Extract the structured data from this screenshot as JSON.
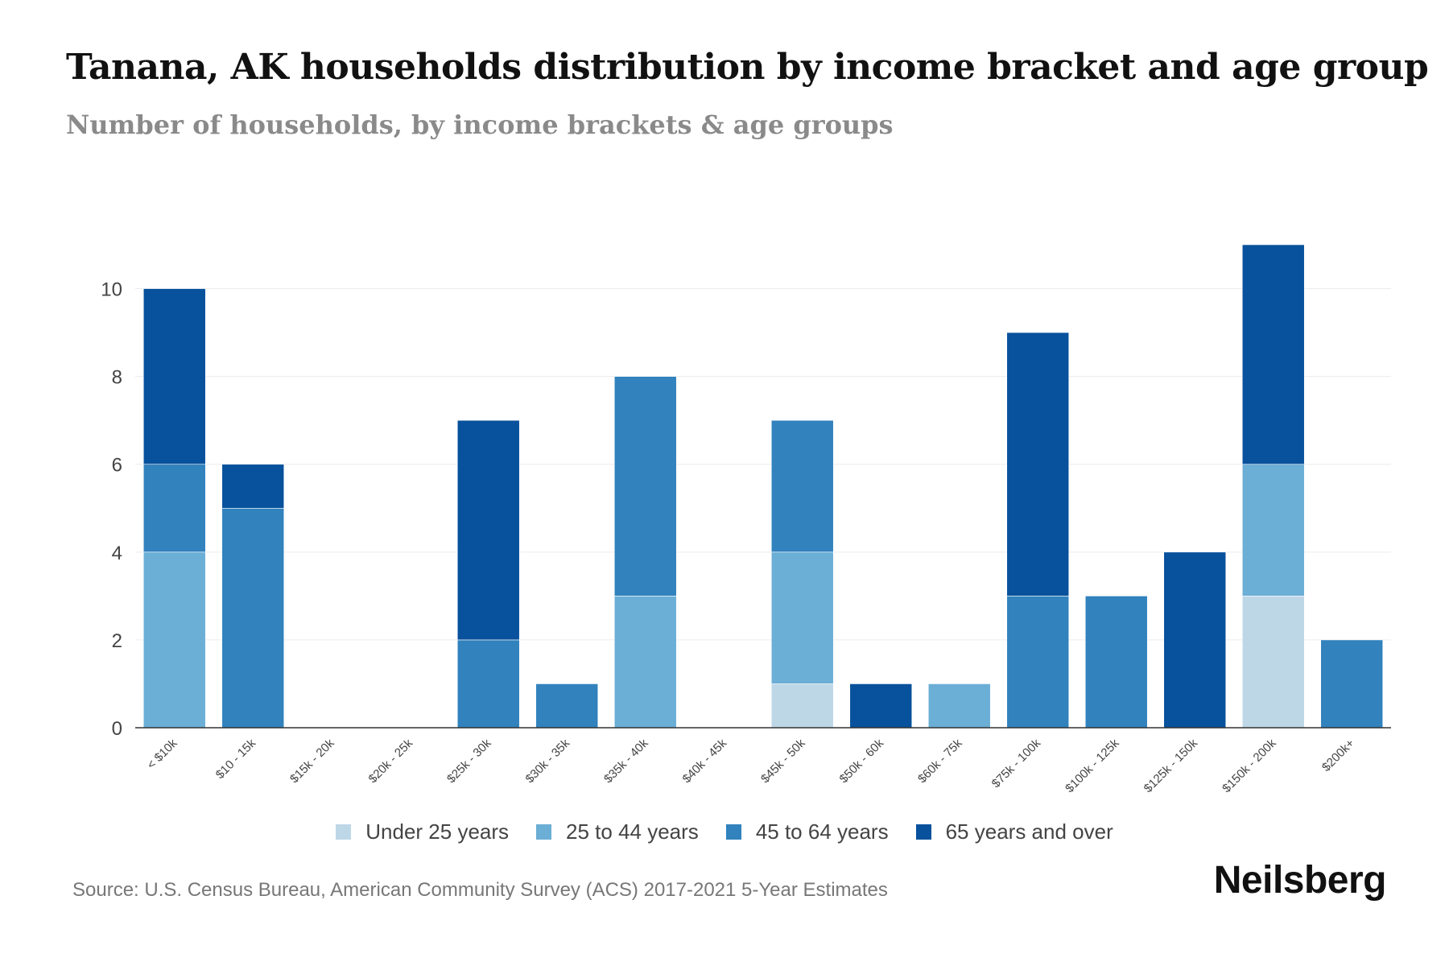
{
  "chart_data": {
    "type": "bar",
    "stacked": true,
    "title": "Tanana, AK households distribution by income bracket and age group",
    "subtitle": "Number of households, by income brackets & age groups",
    "xlabel": "",
    "ylabel": "",
    "ylim": [
      0,
      11
    ],
    "yticks": [
      0,
      2,
      4,
      6,
      8,
      10
    ],
    "grid": true,
    "legend_position": "bottom",
    "categories": [
      "< $10k",
      "$10 - 15k",
      "$15k - 20k",
      "$20k - 25k",
      "$25k - 30k",
      "$30k - 35k",
      "$35k - 40k",
      "$40k - 45k",
      "$45k - 50k",
      "$50k - 60k",
      "$60k - 75k",
      "$75k - 100k",
      "$100k - 125k",
      "$125k - 150k",
      "$150k - 200k",
      "$200k+"
    ],
    "series": [
      {
        "name": "Under 25 years",
        "color": "#bdd7e7",
        "values": [
          0,
          0,
          0,
          0,
          0,
          0,
          0,
          0,
          1,
          0,
          0,
          0,
          0,
          0,
          3,
          0
        ]
      },
      {
        "name": "25 to 44 years",
        "color": "#6baed6",
        "values": [
          4,
          0,
          0,
          0,
          0,
          0,
          3,
          0,
          3,
          0,
          1,
          0,
          0,
          0,
          3,
          0
        ]
      },
      {
        "name": "45 to 64 years",
        "color": "#3182bd",
        "values": [
          2,
          5,
          0,
          0,
          2,
          1,
          5,
          0,
          3,
          0,
          0,
          3,
          3,
          0,
          0,
          2
        ]
      },
      {
        "name": "65 years and over",
        "color": "#08519c",
        "values": [
          4,
          1,
          0,
          0,
          5,
          0,
          0,
          0,
          0,
          1,
          0,
          6,
          0,
          4,
          5,
          0
        ]
      }
    ]
  },
  "source": "Source: U.S. Census Bureau, American Community Survey (ACS) 2017-2021 5-Year Estimates",
  "brand": "Neilsberg"
}
